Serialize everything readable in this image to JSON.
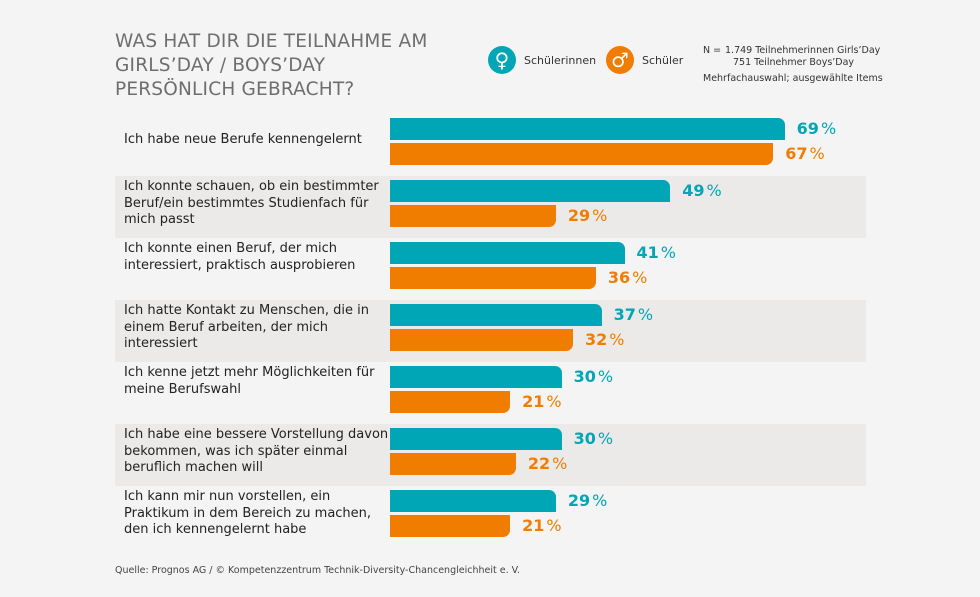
{
  "title": "WAS HAT DIR DIE TEILNAHME AM GIRLS’DAY / BOYS’DAY PERSÖNLICH GEBRACHT?",
  "legend": [
    {
      "label": "Schülerinnen",
      "icon": "female-symbol-icon",
      "glyph": "♀",
      "color": "#00a6b5"
    },
    {
      "label": "Schüler",
      "icon": "male-symbol-icon",
      "glyph": "♂",
      "color": "#f07d00"
    }
  ],
  "notes": {
    "n_label": "N =",
    "girls": "1.749 Teilnehmerinnen Girls’Day",
    "boys": "751 Teilnehmer Boys’Day",
    "selection": "Mehrfachauswahl; ausgewählte Items"
  },
  "source": "Quelle: Prognos AG / © Kompetenzzentrum Technik-Diversity-Chancengleichheit e. V.",
  "chart_data": {
    "type": "bar",
    "orientation": "horizontal",
    "unit": "%",
    "categories": [
      "Ich habe neue Berufe kennengelernt",
      "Ich konnte schauen, ob ein bestimmter Beruf/ein bestimmtes Studienfach für mich passt",
      "Ich konnte einen Beruf, der mich interessiert, praktisch ausprobieren",
      "Ich hatte Kontakt zu Menschen, die in einem Beruf arbeiten, der mich interessiert",
      "Ich kenne jetzt mehr Möglichkeiten für meine Berufswahl",
      "Ich habe eine bessere Vorstellung davon bekommen, was ich später einmal beruflich machen will",
      "Ich kann mir nun vorstellen, ein Praktikum in dem Bereich zu machen, den ich kennengelernt habe"
    ],
    "series": [
      {
        "name": "Schülerinnen",
        "color": "#00a6b5",
        "values": [
          69,
          49,
          41,
          37,
          30,
          30,
          29
        ]
      },
      {
        "name": "Schüler",
        "color": "#f07d00",
        "values": [
          67,
          29,
          36,
          32,
          21,
          22,
          21
        ]
      }
    ],
    "xlim": [
      0,
      100
    ],
    "grid": false,
    "legend_position": "top"
  }
}
